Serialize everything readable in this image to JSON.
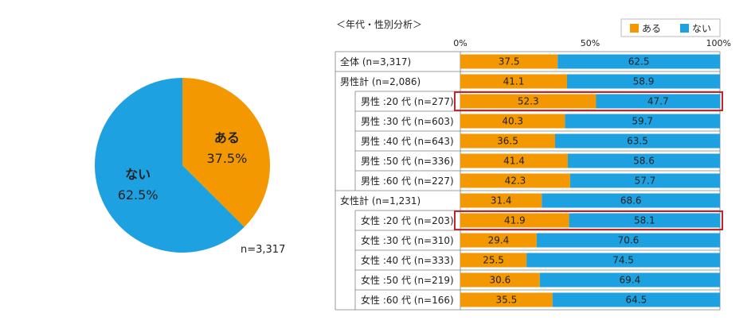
{
  "colors": {
    "yes": "#f39800",
    "no": "#1ea1e1",
    "highlight": "#c0272d",
    "border": "#7f7f7f"
  },
  "chart_data": [
    {
      "type": "pie",
      "slices": [
        {
          "label": "ある",
          "value": 37.5,
          "display": "37.5%"
        },
        {
          "label": "ない",
          "value": 62.5,
          "display": "62.5%"
        }
      ],
      "note": "n=3,317"
    },
    {
      "type": "bar",
      "stacked": "horizontal-100%",
      "title": "＜年代・性別分析＞",
      "ticks": [
        "0%",
        "50%",
        "100%"
      ],
      "legend": [
        "ある",
        "ない"
      ],
      "series_names": [
        "ある",
        "ない"
      ],
      "categories": [
        "全体 (n=3,317)",
        "男性計 (n=2,086)",
        "男性 :20 代 (n=277)",
        "男性 :30 代 (n=603)",
        "男性 :40 代 (n=643)",
        "男性 :50 代 (n=336)",
        "男性 :60 代 (n=227)",
        "女性計 (n=1,231)",
        "女性 :20 代 (n=203)",
        "女性 :30 代 (n=310)",
        "女性 :40 代 (n=333)",
        "女性 :50 代 (n=219)",
        "女性 :60 代 (n=166)"
      ],
      "series": [
        {
          "name": "ある",
          "values": [
            37.5,
            41.1,
            52.3,
            40.3,
            36.5,
            41.4,
            42.3,
            31.4,
            41.9,
            29.4,
            25.5,
            30.6,
            35.5
          ]
        },
        {
          "name": "ない",
          "values": [
            62.5,
            58.9,
            47.7,
            59.7,
            63.5,
            58.6,
            57.7,
            68.6,
            58.1,
            70.6,
            74.5,
            69.4,
            64.5
          ]
        }
      ],
      "highlighted_categories": [
        "男性 :20 代 (n=277)",
        "女性 :20 代 (n=203)"
      ]
    }
  ]
}
